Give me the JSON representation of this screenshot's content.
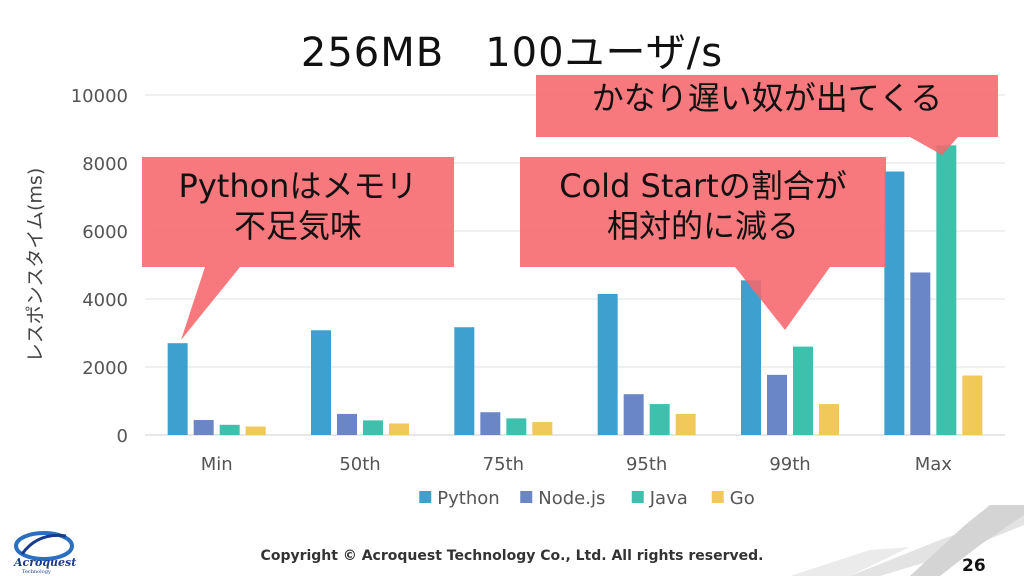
{
  "slide": {
    "title": "256MB　100ユーザ/s",
    "footer": "Copyright © Acroquest Technology Co., Ltd. All rights reserved.",
    "page_number": "26",
    "logo_text": "Acroquest",
    "logo_subtext": "Technology"
  },
  "callouts": [
    {
      "text": "Pythonはメモリ\n不足気味"
    },
    {
      "text": "Cold Startの割合が\n相対的に減る"
    },
    {
      "text": "かなり遅い奴が出てくる"
    }
  ],
  "colors": {
    "callout_fill": "#f7666b",
    "Python": "#3ea0cf",
    "Node.js": "#6b86c6",
    "Java": "#3fc0ad",
    "Go": "#f1c85a"
  },
  "chart_data": {
    "type": "bar",
    "title": "",
    "xlabel": "",
    "ylabel": "レスポンスタイム(ms)",
    "ylim": [
      0,
      10000
    ],
    "yticks": [
      "0",
      "2000",
      "4000",
      "6000",
      "8000",
      "10000"
    ],
    "grid": true,
    "legend_position": "bottom",
    "categories": [
      "Min",
      "50th",
      "75th",
      "95th",
      "99th",
      "Max"
    ],
    "series": [
      {
        "name": "Python",
        "values": [
          2700,
          3080,
          3170,
          4150,
          4550,
          7750
        ]
      },
      {
        "name": "Node.js",
        "values": [
          440,
          620,
          670,
          1200,
          1770,
          4780
        ]
      },
      {
        "name": "Java",
        "values": [
          300,
          430,
          490,
          910,
          2600,
          8520
        ]
      },
      {
        "name": "Go",
        "values": [
          250,
          340,
          380,
          620,
          910,
          1750
        ]
      }
    ]
  }
}
